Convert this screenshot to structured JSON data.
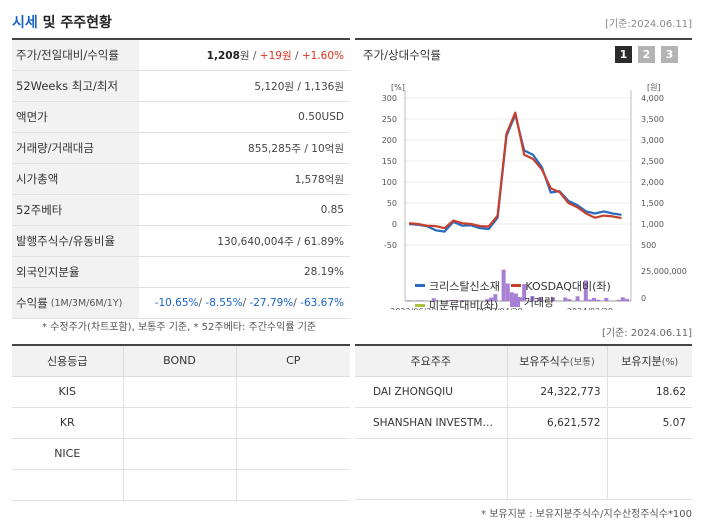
{
  "header": {
    "title_accent": "시세",
    "title_rest": " 및 주주현황",
    "date": "[기준:2024.06.11]"
  },
  "quote": {
    "rows": [
      {
        "label": "주가/전일대비/수익률",
        "price": "1,208",
        "price_unit": "원",
        "change": "+19원",
        "rate": "+1.60%"
      },
      {
        "label": "52Weeks 최고/최저",
        "value": "5,120원 / 1,136원"
      },
      {
        "label": "액면가",
        "value": "0.50USD"
      },
      {
        "label": "거래량/거래대금",
        "value": "855,285주 / 10억원"
      },
      {
        "label": "시가총액",
        "value": "1,578억원"
      },
      {
        "label": "52주베타",
        "value": "0.85"
      },
      {
        "label": "발행주식수/유동비율",
        "value": "130,640,004주 / 61.89%"
      },
      {
        "label": "외국인지분율",
        "value": "28.19%"
      },
      {
        "label": "수익률",
        "sublabel": "(1M/3M/6M/1Y)",
        "returns": [
          "-10.65%",
          "-8.55%",
          "-27.79%",
          "-63.67%"
        ]
      }
    ],
    "note": "* 수정주가(차트포함), 보통주 기준, * 52주베타: 주간수익률 기준"
  },
  "chart_panel": {
    "title": "주가/상대수익률",
    "tabs": [
      "1",
      "2",
      "3"
    ],
    "active_tab": 0
  },
  "chart_data": {
    "type": "line",
    "left_axis_label": "[%]",
    "right_axis_label": "[원]",
    "left_ticks": [
      300,
      250,
      200,
      150,
      100,
      50,
      0,
      -50
    ],
    "left_ylim": [
      -50,
      300
    ],
    "right_ticks": [
      "4,000",
      "3,500",
      "3,000",
      "2,500",
      "2,000",
      "1,500",
      "1,000",
      "500"
    ],
    "right_ylim": [
      500,
      4000
    ],
    "volume_tick": "25,000,000",
    "volume_zero": "0",
    "x_ticks": [
      "2022/06/30",
      "2023/04/28",
      "2024/02/29"
    ],
    "x_tick_positions": [
      2,
      23,
      45
    ],
    "x_range": [
      0,
      55
    ],
    "series": [
      {
        "name": "크리스탈신소재",
        "color": "#2a6bbf",
        "axis": "left",
        "values": [
          0,
          -2,
          -5,
          -15,
          -18,
          5,
          -4,
          -3,
          -10,
          -12,
          15,
          210,
          260,
          175,
          165,
          135,
          75,
          78,
          55,
          45,
          30,
          25,
          30,
          25,
          22
        ]
      },
      {
        "name": "KOSDAQ대비(좌)",
        "color": "#c8402c",
        "axis": "left",
        "values": [
          2,
          0,
          -4,
          -5,
          -10,
          8,
          2,
          0,
          -5,
          -6,
          20,
          215,
          265,
          165,
          155,
          130,
          85,
          76,
          50,
          40,
          25,
          15,
          20,
          18,
          14
        ]
      },
      {
        "name": "미분류대비(좌)",
        "color": "#a9c23f",
        "axis": "left",
        "values": []
      }
    ],
    "volume": {
      "name": "거래량",
      "color": "#a77fd4",
      "max": 28000000,
      "bars": [
        {
          "x": 1,
          "v": 600000
        },
        {
          "x": 3,
          "v": 500000
        },
        {
          "x": 4,
          "v": 500000
        },
        {
          "x": 7,
          "v": 2200000
        },
        {
          "x": 11,
          "v": 800000
        },
        {
          "x": 14,
          "v": 800000
        },
        {
          "x": 17,
          "v": 500000
        },
        {
          "x": 20,
          "v": 1400000
        },
        {
          "x": 21,
          "v": 2800000
        },
        {
          "x": 22,
          "v": 5500000
        },
        {
          "x": 24,
          "v": 25000000
        },
        {
          "x": 25,
          "v": 14000000
        },
        {
          "x": 26,
          "v": 7000000
        },
        {
          "x": 27,
          "v": 6000000
        },
        {
          "x": 28,
          "v": 3000000
        },
        {
          "x": 29,
          "v": 13500000
        },
        {
          "x": 31,
          "v": 4000000
        },
        {
          "x": 33,
          "v": 3200000
        },
        {
          "x": 36,
          "v": 3000000
        },
        {
          "x": 39,
          "v": 2800000
        },
        {
          "x": 40,
          "v": 1500000
        },
        {
          "x": 42,
          "v": 3800000
        },
        {
          "x": 44,
          "v": 16500000
        },
        {
          "x": 45,
          "v": 1200000
        },
        {
          "x": 46,
          "v": 2500000
        },
        {
          "x": 47,
          "v": 1000000
        },
        {
          "x": 49,
          "v": 2500000
        },
        {
          "x": 52,
          "v": 900000
        },
        {
          "x": 53,
          "v": 3000000
        },
        {
          "x": 54,
          "v": 1700000
        }
      ]
    },
    "legend": [
      {
        "label": "크리스탈신소재",
        "color": "#2a6bbf",
        "kind": "line"
      },
      {
        "label": "KOSDAQ대비(좌)",
        "color": "#c8402c",
        "kind": "line"
      },
      {
        "label": "미분류대비(좌)",
        "color": "#a9c23f",
        "kind": "line"
      },
      {
        "label": "거래량",
        "color": "#a77fd4",
        "kind": "box"
      }
    ]
  },
  "ref_date": "[기준: 2024.06.11]",
  "credit": {
    "headers": [
      "신용등급",
      "BOND",
      "CP"
    ],
    "rows": [
      [
        "KIS",
        "",
        ""
      ],
      [
        "KR",
        "",
        ""
      ],
      [
        "NICE",
        "",
        ""
      ],
      [
        "",
        "",
        ""
      ]
    ]
  },
  "holders": {
    "headers": [
      "주요주주",
      "보유주식수",
      "(보통)",
      "보유지분",
      "(%)"
    ],
    "rows": [
      {
        "name": "DAI ZHONGQIU",
        "shares": "24,322,773",
        "pct": "18.62"
      },
      {
        "name": "SHANSHAN INVESTM…",
        "shares": "6,621,572",
        "pct": "5.07"
      }
    ],
    "note": "* 보유지분 : 보유지분주식수/지수산정주식수*100"
  }
}
